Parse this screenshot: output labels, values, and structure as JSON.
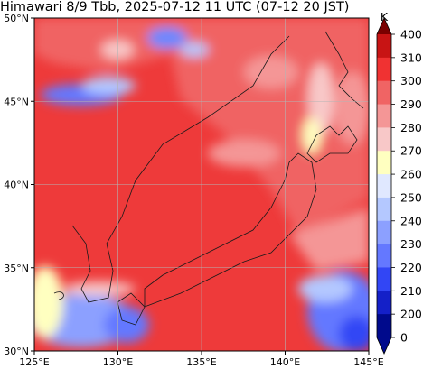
{
  "title": "Himawari 8/9 Tbb, 2025-07-12 11 UTC (07-12 20 JST)",
  "map": {
    "lon_range": [
      125,
      145
    ],
    "lat_range": [
      30,
      50
    ],
    "lon_ticks": [
      "125°E",
      "130°E",
      "135°E",
      "140°E",
      "145°E"
    ],
    "lat_ticks": [
      "30°N",
      "35°N",
      "40°N",
      "45°N",
      "50°N"
    ],
    "grid_lines": true
  },
  "colorbar": {
    "unit": "K",
    "levels": [
      "400",
      "310",
      "300",
      "290",
      "280",
      "270",
      "260",
      "250",
      "240",
      "230",
      "220",
      "210",
      "200",
      "0"
    ],
    "colors": [
      "#7a0000",
      "#c81414",
      "#f03232",
      "#f06464",
      "#f49696",
      "#f8c8c8",
      "#ffffc0",
      "#e0e8ff",
      "#b4c8ff",
      "#8ca0ff",
      "#6478ff",
      "#3246f5",
      "#1420c8",
      "#000a8c"
    ]
  }
}
